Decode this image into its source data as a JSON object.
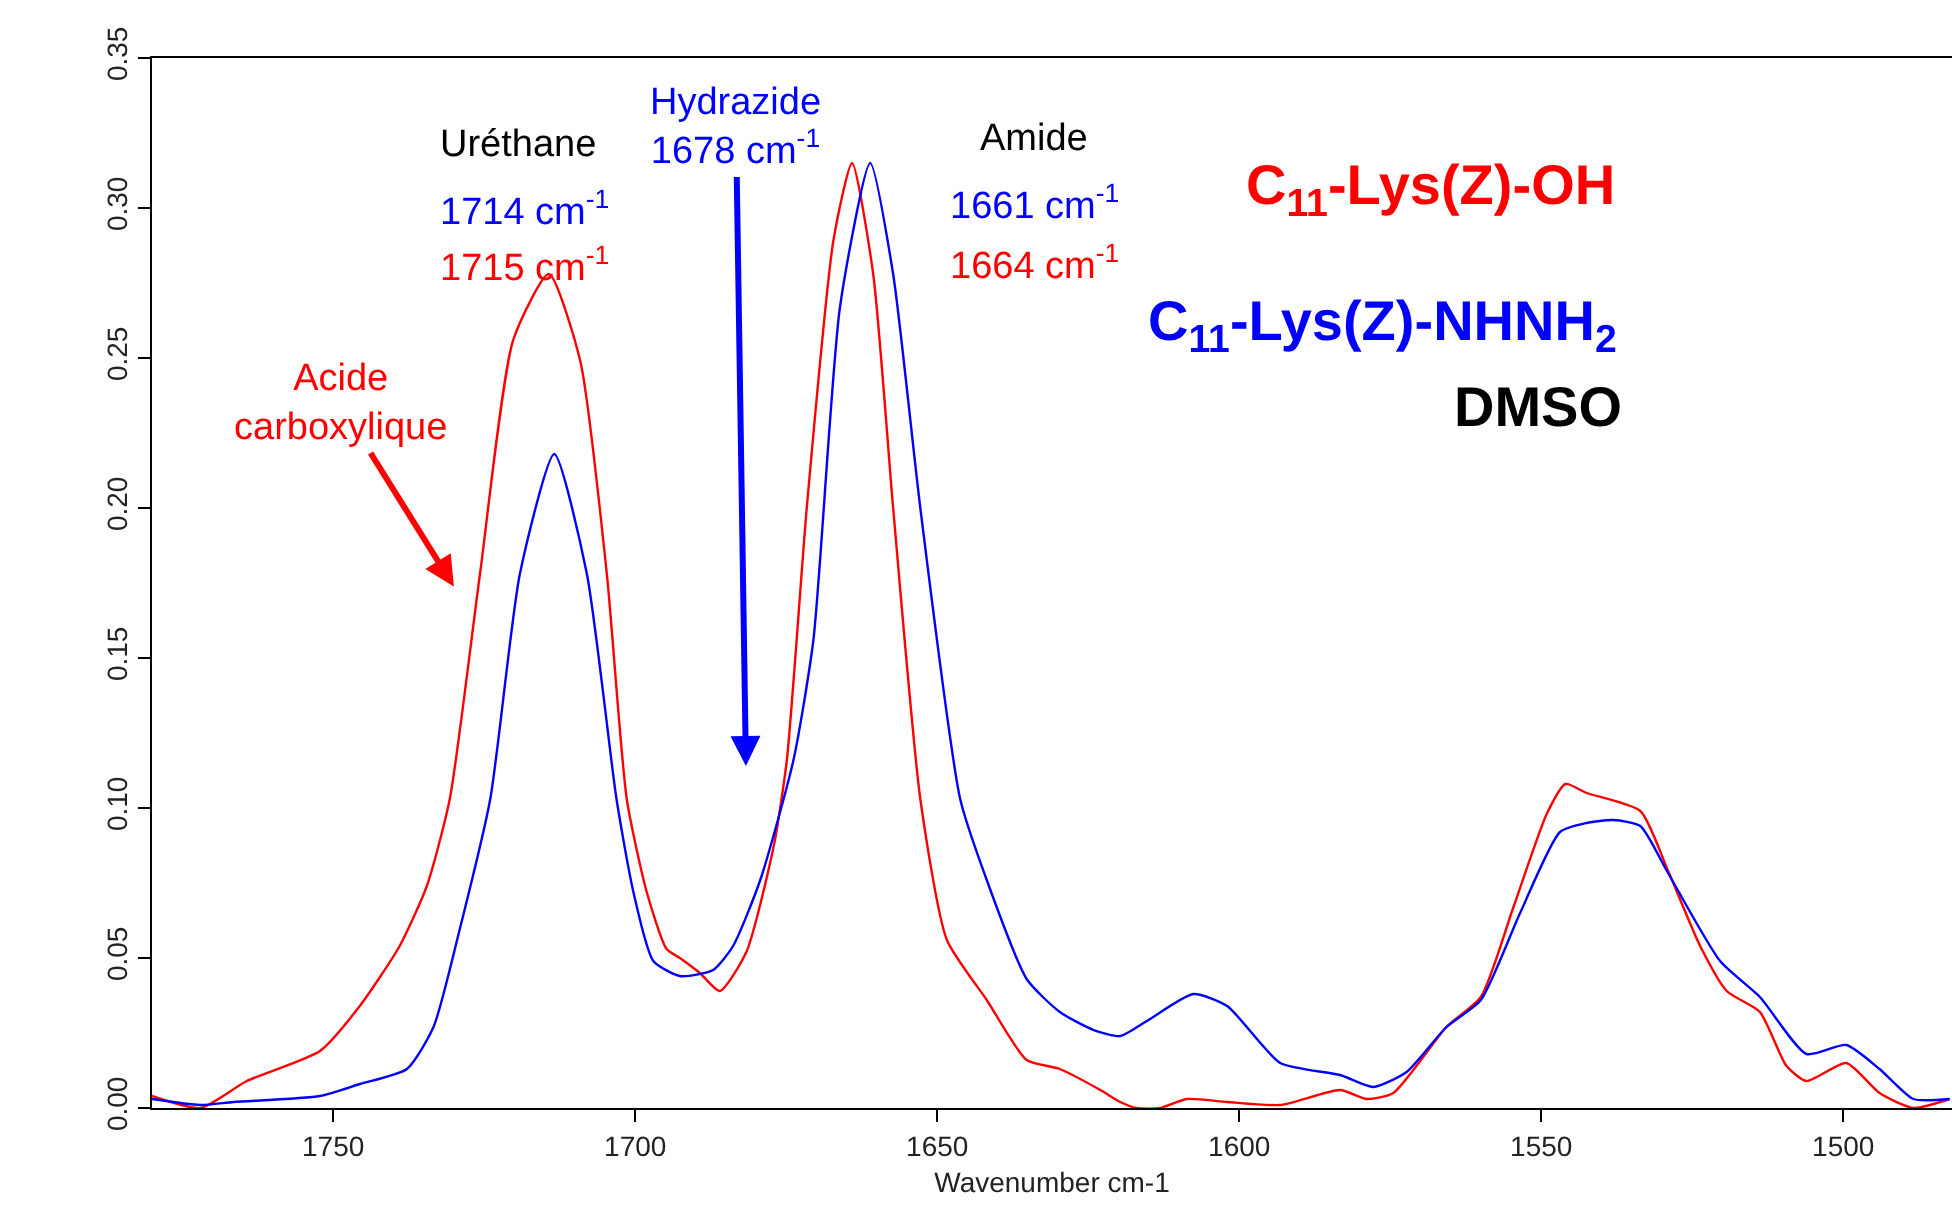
{
  "chart_data": {
    "type": "line",
    "xlabel": "Wavenumber cm-1",
    "xlim": [
      1780,
      1482
    ],
    "xticks": [
      1750,
      1700,
      1650,
      1600,
      1550,
      1500
    ],
    "ylim": [
      0,
      0.35
    ],
    "yticks": [
      {
        "value": 0,
        "label": "0.00"
      },
      0.05,
      {
        "value": 0.1,
        "label": "0.10"
      },
      0.15,
      {
        "value": 0.2,
        "label": "0.20"
      },
      0.25,
      {
        "value": 0.3,
        "label": "0.30"
      },
      0.35
    ],
    "series": [
      {
        "name": "C$_{11}$-Lys(Z)-OH",
        "color": "#ff0000",
        "x": [
          1780,
          1772,
          1764.3,
          1752.2,
          1745.6,
          1739,
          1734.5,
          1730.7,
          1725.7,
          1720.2,
          1714.3,
          1709.1,
          1704.7,
          1701.4,
          1698.1,
          1694.8,
          1692.6,
          1689.3,
          1686,
          1681.6,
          1677.1,
          1674.9,
          1671.6,
          1667.2,
          1664.1,
          1660.6,
          1657.3,
          1652.8,
          1648.4,
          1641.8,
          1635.2,
          1629.7,
          1623,
          1619.7,
          1617,
          1613.1,
          1608.7,
          1602,
          1593.2,
          1583.3,
          1578.9,
          1574.5,
          1565.7,
          1560,
          1554.6,
          1549.1,
          1546,
          1542.5,
          1533.6,
          1529.2,
          1523.7,
          1519.3,
          1513.8,
          1509.4,
          1506.1,
          1499.5,
          1494,
          1488.4,
          1482.4
        ],
        "values": [
          0.004,
          0.0,
          0.009,
          0.019,
          0.034,
          0.054,
          0.074,
          0.103,
          0.178,
          0.256,
          0.278,
          0.249,
          0.178,
          0.103,
          0.072,
          0.053,
          0.05,
          0.045,
          0.039,
          0.052,
          0.087,
          0.116,
          0.2,
          0.289,
          0.315,
          0.278,
          0.2,
          0.103,
          0.056,
          0.036,
          0.016,
          0.013,
          0.006,
          0.002,
          0.0,
          0.0,
          0.003,
          0.002,
          0.001,
          0.006,
          0.003,
          0.005,
          0.027,
          0.037,
          0.067,
          0.098,
          0.108,
          0.105,
          0.099,
          0.08,
          0.054,
          0.039,
          0.032,
          0.014,
          0.009,
          0.015,
          0.005,
          0.0,
          0.003
        ]
      },
      {
        "name": "C$_{11}$-Lys(Z)-NHNH$_{2}$",
        "color": "#0000ff",
        "x": [
          1780,
          1772,
          1766.5,
          1752.2,
          1745.6,
          1737.8,
          1733.4,
          1729,
          1724,
          1719.1,
          1713.4,
          1708,
          1703.1,
          1700.3,
          1697,
          1692.6,
          1687.1,
          1683.8,
          1679.3,
          1673.8,
          1670.5,
          1666.1,
          1661.1,
          1657.3,
          1652.8,
          1646.2,
          1641.8,
          1635.2,
          1629.7,
          1624.1,
          1619.7,
          1615.3,
          1607.6,
          1602,
          1593.2,
          1583.3,
          1577.8,
          1572.3,
          1565.7,
          1560,
          1553.5,
          1546.9,
          1542.5,
          1538.1,
          1533.6,
          1529.2,
          1520.4,
          1513.8,
          1506.1,
          1499.5,
          1494,
          1488.4,
          1482.4
        ],
        "values": [
          0.003,
          0.001,
          0.002,
          0.004,
          0.008,
          0.013,
          0.027,
          0.06,
          0.103,
          0.178,
          0.218,
          0.178,
          0.103,
          0.072,
          0.049,
          0.044,
          0.046,
          0.054,
          0.076,
          0.116,
          0.156,
          0.267,
          0.315,
          0.278,
          0.2,
          0.103,
          0.076,
          0.043,
          0.032,
          0.026,
          0.024,
          0.029,
          0.038,
          0.034,
          0.015,
          0.011,
          0.007,
          0.012,
          0.027,
          0.036,
          0.065,
          0.092,
          0.095,
          0.096,
          0.094,
          0.079,
          0.049,
          0.037,
          0.018,
          0.021,
          0.013,
          0.003,
          0.003
        ]
      }
    ],
    "annotations": [
      "Uréthane",
      "1714 cm$^{-1}$",
      "1715 cm$^{-1}$",
      "Acide\ncarboxylique",
      "Hydrazide\n1678 cm$^{-1}$",
      "Amide",
      "1661 cm$^{-1}$",
      "1664 cm$^{-1}$",
      "DMSO"
    ]
  }
}
